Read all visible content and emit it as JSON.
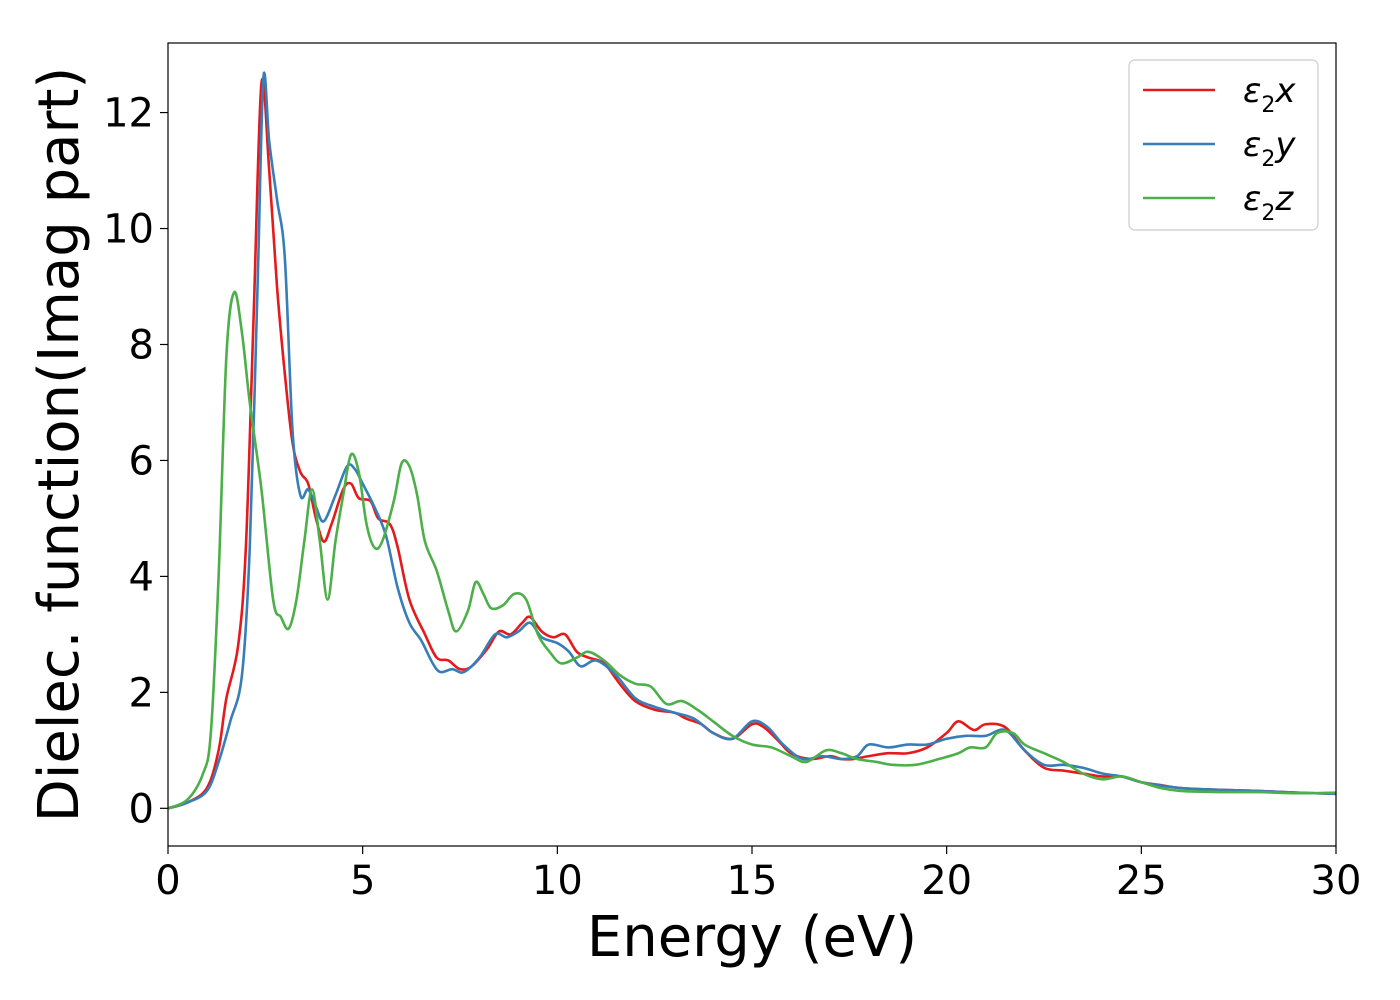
{
  "chart_data": {
    "type": "line",
    "xlabel": "Energy (eV)",
    "ylabel": "Dielec. function(Imag part)",
    "xlim": [
      0,
      30
    ],
    "ylim": [
      -0.65,
      13.2
    ],
    "xticks": [
      0,
      5,
      10,
      15,
      20,
      25,
      30
    ],
    "yticks": [
      0,
      2,
      4,
      6,
      8,
      10,
      12
    ],
    "grid": false,
    "legend_position": "top-right",
    "series": [
      {
        "name": "ε2x",
        "legend_base": "ε",
        "legend_sub": "2",
        "legend_tail": "x",
        "color": "#e41a1c",
        "points": [
          [
            0,
            0
          ],
          [
            0.5,
            0.1
          ],
          [
            1.0,
            0.35
          ],
          [
            1.3,
            1.0
          ],
          [
            1.5,
            1.9
          ],
          [
            1.8,
            2.8
          ],
          [
            2.0,
            4.5
          ],
          [
            2.2,
            8.5
          ],
          [
            2.4,
            12.5
          ],
          [
            2.6,
            11.0
          ],
          [
            2.8,
            9.0
          ],
          [
            3.0,
            7.5
          ],
          [
            3.2,
            6.3
          ],
          [
            3.4,
            5.8
          ],
          [
            3.6,
            5.6
          ],
          [
            3.8,
            5.0
          ],
          [
            4.0,
            4.6
          ],
          [
            4.2,
            4.9
          ],
          [
            4.5,
            5.5
          ],
          [
            4.7,
            5.6
          ],
          [
            4.9,
            5.35
          ],
          [
            5.2,
            5.3
          ],
          [
            5.4,
            5.0
          ],
          [
            5.7,
            4.9
          ],
          [
            5.9,
            4.5
          ],
          [
            6.2,
            3.6
          ],
          [
            6.6,
            3.0
          ],
          [
            6.9,
            2.6
          ],
          [
            7.2,
            2.55
          ],
          [
            7.5,
            2.4
          ],
          [
            7.8,
            2.45
          ],
          [
            8.2,
            2.75
          ],
          [
            8.5,
            3.05
          ],
          [
            8.8,
            3.0
          ],
          [
            9.1,
            3.2
          ],
          [
            9.3,
            3.3
          ],
          [
            9.6,
            3.05
          ],
          [
            9.9,
            2.95
          ],
          [
            10.2,
            3.0
          ],
          [
            10.5,
            2.7
          ],
          [
            10.8,
            2.6
          ],
          [
            11.2,
            2.5
          ],
          [
            11.6,
            2.15
          ],
          [
            12.0,
            1.85
          ],
          [
            12.5,
            1.7
          ],
          [
            13.0,
            1.65
          ],
          [
            13.3,
            1.55
          ],
          [
            13.7,
            1.45
          ],
          [
            14.0,
            1.3
          ],
          [
            14.5,
            1.2
          ],
          [
            15.0,
            1.45
          ],
          [
            15.3,
            1.4
          ],
          [
            15.7,
            1.15
          ],
          [
            16.0,
            0.95
          ],
          [
            16.5,
            0.85
          ],
          [
            17.0,
            0.9
          ],
          [
            17.3,
            0.85
          ],
          [
            17.6,
            0.85
          ],
          [
            18.0,
            0.9
          ],
          [
            18.5,
            0.95
          ],
          [
            19.0,
            0.95
          ],
          [
            19.5,
            1.05
          ],
          [
            20.0,
            1.3
          ],
          [
            20.3,
            1.5
          ],
          [
            20.7,
            1.35
          ],
          [
            21.0,
            1.45
          ],
          [
            21.5,
            1.4
          ],
          [
            22.0,
            1.0
          ],
          [
            22.5,
            0.7
          ],
          [
            23.0,
            0.65
          ],
          [
            23.5,
            0.6
          ],
          [
            24.0,
            0.55
          ],
          [
            24.5,
            0.55
          ],
          [
            25.0,
            0.45
          ],
          [
            25.5,
            0.4
          ],
          [
            26.0,
            0.35
          ],
          [
            27.0,
            0.32
          ],
          [
            28.0,
            0.3
          ],
          [
            29.0,
            0.27
          ],
          [
            30.0,
            0.25
          ]
        ]
      },
      {
        "name": "ε2y",
        "legend_base": "ε",
        "legend_sub": "2",
        "legend_tail": "y",
        "color": "#377eb8",
        "points": [
          [
            0,
            0
          ],
          [
            0.5,
            0.1
          ],
          [
            1.0,
            0.3
          ],
          [
            1.3,
            0.8
          ],
          [
            1.6,
            1.5
          ],
          [
            1.9,
            2.3
          ],
          [
            2.1,
            4.5
          ],
          [
            2.3,
            9.0
          ],
          [
            2.45,
            12.6
          ],
          [
            2.6,
            11.5
          ],
          [
            2.8,
            10.5
          ],
          [
            3.0,
            9.5
          ],
          [
            3.2,
            6.5
          ],
          [
            3.4,
            5.4
          ],
          [
            3.6,
            5.5
          ],
          [
            3.8,
            5.2
          ],
          [
            4.0,
            4.95
          ],
          [
            4.3,
            5.4
          ],
          [
            4.6,
            5.9
          ],
          [
            4.8,
            5.85
          ],
          [
            5.0,
            5.6
          ],
          [
            5.3,
            5.2
          ],
          [
            5.6,
            4.7
          ],
          [
            5.9,
            3.8
          ],
          [
            6.2,
            3.2
          ],
          [
            6.5,
            2.9
          ],
          [
            6.8,
            2.5
          ],
          [
            7.0,
            2.35
          ],
          [
            7.3,
            2.4
          ],
          [
            7.6,
            2.35
          ],
          [
            8.0,
            2.6
          ],
          [
            8.4,
            3.0
          ],
          [
            8.7,
            2.95
          ],
          [
            9.0,
            3.05
          ],
          [
            9.3,
            3.2
          ],
          [
            9.6,
            2.95
          ],
          [
            10.0,
            2.85
          ],
          [
            10.3,
            2.7
          ],
          [
            10.6,
            2.45
          ],
          [
            11.0,
            2.55
          ],
          [
            11.5,
            2.3
          ],
          [
            12.0,
            1.9
          ],
          [
            12.5,
            1.75
          ],
          [
            13.0,
            1.65
          ],
          [
            13.5,
            1.55
          ],
          [
            14.0,
            1.3
          ],
          [
            14.5,
            1.2
          ],
          [
            15.0,
            1.5
          ],
          [
            15.4,
            1.4
          ],
          [
            15.8,
            1.1
          ],
          [
            16.3,
            0.85
          ],
          [
            16.8,
            0.9
          ],
          [
            17.3,
            0.85
          ],
          [
            17.7,
            0.9
          ],
          [
            18.0,
            1.1
          ],
          [
            18.5,
            1.05
          ],
          [
            19.0,
            1.1
          ],
          [
            19.5,
            1.1
          ],
          [
            20.0,
            1.2
          ],
          [
            20.5,
            1.25
          ],
          [
            21.0,
            1.25
          ],
          [
            21.5,
            1.35
          ],
          [
            22.0,
            1.0
          ],
          [
            22.5,
            0.75
          ],
          [
            23.0,
            0.75
          ],
          [
            23.5,
            0.7
          ],
          [
            24.0,
            0.6
          ],
          [
            24.5,
            0.55
          ],
          [
            25.0,
            0.45
          ],
          [
            26.0,
            0.35
          ],
          [
            27.0,
            0.32
          ],
          [
            28.0,
            0.3
          ],
          [
            29.0,
            0.27
          ],
          [
            30.0,
            0.25
          ]
        ]
      },
      {
        "name": "ε2z",
        "legend_base": "ε",
        "legend_sub": "2",
        "legend_tail": "z",
        "color": "#4daf4a",
        "points": [
          [
            0,
            0
          ],
          [
            0.5,
            0.15
          ],
          [
            0.9,
            0.6
          ],
          [
            1.1,
            1.3
          ],
          [
            1.3,
            4.0
          ],
          [
            1.5,
            7.8
          ],
          [
            1.7,
            8.9
          ],
          [
            1.9,
            8.2
          ],
          [
            2.1,
            7.0
          ],
          [
            2.4,
            5.5
          ],
          [
            2.7,
            3.6
          ],
          [
            2.9,
            3.3
          ],
          [
            3.1,
            3.1
          ],
          [
            3.3,
            3.6
          ],
          [
            3.5,
            4.6
          ],
          [
            3.7,
            5.5
          ],
          [
            3.9,
            4.6
          ],
          [
            4.1,
            3.6
          ],
          [
            4.3,
            4.6
          ],
          [
            4.5,
            5.4
          ],
          [
            4.7,
            6.1
          ],
          [
            4.9,
            5.8
          ],
          [
            5.1,
            4.9
          ],
          [
            5.3,
            4.5
          ],
          [
            5.5,
            4.6
          ],
          [
            5.8,
            5.3
          ],
          [
            6.0,
            5.95
          ],
          [
            6.2,
            5.9
          ],
          [
            6.4,
            5.4
          ],
          [
            6.6,
            4.6
          ],
          [
            6.9,
            4.1
          ],
          [
            7.2,
            3.4
          ],
          [
            7.4,
            3.05
          ],
          [
            7.7,
            3.4
          ],
          [
            7.9,
            3.9
          ],
          [
            8.1,
            3.7
          ],
          [
            8.3,
            3.45
          ],
          [
            8.6,
            3.5
          ],
          [
            8.9,
            3.7
          ],
          [
            9.2,
            3.6
          ],
          [
            9.5,
            3.0
          ],
          [
            9.8,
            2.7
          ],
          [
            10.1,
            2.5
          ],
          [
            10.5,
            2.6
          ],
          [
            10.8,
            2.7
          ],
          [
            11.2,
            2.55
          ],
          [
            11.6,
            2.3
          ],
          [
            12.0,
            2.15
          ],
          [
            12.4,
            2.1
          ],
          [
            12.8,
            1.8
          ],
          [
            13.2,
            1.85
          ],
          [
            13.6,
            1.7
          ],
          [
            14.0,
            1.5
          ],
          [
            14.5,
            1.25
          ],
          [
            15.0,
            1.1
          ],
          [
            15.5,
            1.05
          ],
          [
            16.0,
            0.9
          ],
          [
            16.4,
            0.8
          ],
          [
            16.9,
            1.0
          ],
          [
            17.3,
            0.95
          ],
          [
            17.7,
            0.85
          ],
          [
            18.2,
            0.8
          ],
          [
            18.6,
            0.75
          ],
          [
            19.2,
            0.75
          ],
          [
            19.8,
            0.85
          ],
          [
            20.3,
            0.95
          ],
          [
            20.6,
            1.05
          ],
          [
            21.0,
            1.05
          ],
          [
            21.3,
            1.3
          ],
          [
            21.7,
            1.3
          ],
          [
            22.0,
            1.1
          ],
          [
            22.5,
            0.95
          ],
          [
            23.0,
            0.8
          ],
          [
            23.5,
            0.6
          ],
          [
            24.0,
            0.5
          ],
          [
            24.5,
            0.55
          ],
          [
            25.0,
            0.45
          ],
          [
            25.5,
            0.35
          ],
          [
            26.0,
            0.3
          ],
          [
            27.0,
            0.28
          ],
          [
            28.0,
            0.28
          ],
          [
            29.0,
            0.26
          ],
          [
            30.0,
            0.27
          ]
        ]
      }
    ]
  }
}
